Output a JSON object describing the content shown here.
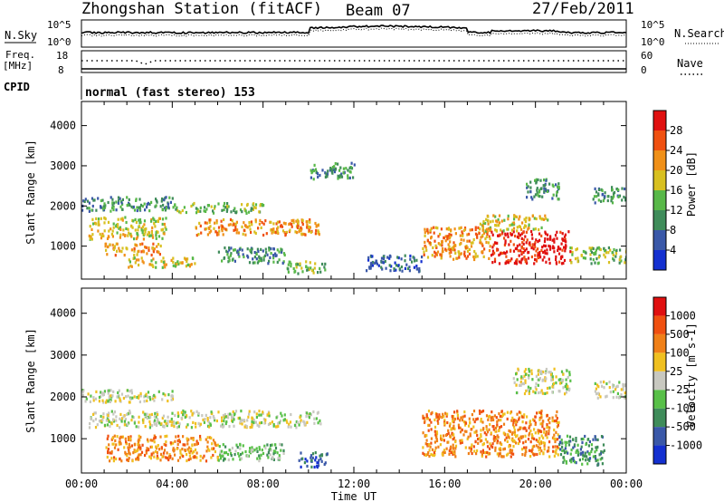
{
  "header": {
    "station": "Zhongshan Station (fitACF)",
    "beam": "Beam 07",
    "date": "27/Feb/2011"
  },
  "top_panels": {
    "nsky_label": "N.Sky",
    "nsearch_label": "N.Search",
    "freq_label": "Freq.",
    "freq_unit": "[MHz]",
    "nave_label": "Nave",
    "cpid_label": "CPID",
    "cpid_text": "normal (fast stereo) 153",
    "noise_ticks": [
      "10^5",
      "10^0"
    ],
    "freq_ticks": [
      "18",
      "8"
    ],
    "nave_ticks": [
      "60",
      "0"
    ]
  },
  "chart_data": [
    {
      "type": "heatmap",
      "title": "Power",
      "ylabel": "Slant Range [km]",
      "xlabel": "",
      "x_range": [
        "00:00",
        "24:00"
      ],
      "ylim": [
        180,
        4600
      ],
      "y_ticks": [
        "1000",
        "2000",
        "3000",
        "4000"
      ],
      "colorbar": {
        "label": "Power [dB]",
        "ticks": [
          "4",
          "8",
          "12",
          "16",
          "20",
          "24",
          "28"
        ],
        "colors": [
          "#1430d0",
          "#3a58a8",
          "#3f8c5a",
          "#58b848",
          "#d8c020",
          "#f09018",
          "#f05010",
          "#e01010"
        ]
      },
      "patches": [
        {
          "t0": 0.0,
          "t1": 4.0,
          "r0": 1900,
          "r1": 2250,
          "level": 2
        },
        {
          "t0": 0.3,
          "t1": 3.7,
          "r0": 1200,
          "r1": 1750,
          "level": 4
        },
        {
          "t0": 1.0,
          "t1": 3.5,
          "r0": 800,
          "r1": 1100,
          "level": 5
        },
        {
          "t0": 2.0,
          "t1": 5.0,
          "r0": 500,
          "r1": 750,
          "level": 4
        },
        {
          "t0": 4.0,
          "t1": 8.0,
          "r0": 1850,
          "r1": 2100,
          "level": 3
        },
        {
          "t0": 5.0,
          "t1": 10.5,
          "r0": 1300,
          "r1": 1700,
          "level": 5
        },
        {
          "t0": 6.0,
          "t1": 9.0,
          "r0": 600,
          "r1": 1000,
          "level": 2
        },
        {
          "t0": 9.0,
          "t1": 10.7,
          "r0": 350,
          "r1": 650,
          "level": 3
        },
        {
          "t0": 10.0,
          "t1": 12.0,
          "r0": 2700,
          "r1": 3100,
          "level": 2
        },
        {
          "t0": 12.5,
          "t1": 15.0,
          "r0": 400,
          "r1": 800,
          "level": 1
        },
        {
          "t0": 15.0,
          "t1": 18.0,
          "r0": 700,
          "r1": 1500,
          "level": 5
        },
        {
          "t0": 18.0,
          "t1": 21.5,
          "r0": 600,
          "r1": 1400,
          "level": 7
        },
        {
          "t0": 17.5,
          "t1": 20.5,
          "r0": 1400,
          "r1": 1800,
          "level": 4
        },
        {
          "t0": 19.5,
          "t1": 21.0,
          "r0": 2200,
          "r1": 2700,
          "level": 2
        },
        {
          "t0": 21.5,
          "t1": 24.0,
          "r0": 600,
          "r1": 1000,
          "level": 3
        },
        {
          "t0": 22.5,
          "t1": 24.0,
          "r0": 2100,
          "r1": 2500,
          "level": 2
        }
      ]
    },
    {
      "type": "heatmap",
      "title": "Velocity",
      "ylabel": "Slant Range [km]",
      "xlabel": "Time UT",
      "x_range": [
        "00:00",
        "24:00"
      ],
      "x_ticks": [
        "00:00",
        "04:00",
        "08:00",
        "12:00",
        "16:00",
        "20:00",
        "00:00"
      ],
      "ylim": [
        180,
        4600
      ],
      "y_ticks": [
        "1000",
        "2000",
        "3000",
        "4000"
      ],
      "colorbar": {
        "label": "Velocity [m s-1]",
        "ticks": [
          "1000",
          "500",
          "100",
          "25",
          "-25",
          "-100",
          "-500",
          "-1000"
        ],
        "colors": [
          "#1430d0",
          "#3a58a8",
          "#3f8c5a",
          "#58c048",
          "#c8c8c0",
          "#f0c020",
          "#f08018",
          "#f05010",
          "#e01010"
        ]
      },
      "patches": [
        {
          "t0": 0.0,
          "t1": 4.0,
          "r0": 1900,
          "r1": 2200,
          "level": 4
        },
        {
          "t0": 0.3,
          "t1": 10.5,
          "r0": 1300,
          "r1": 1700,
          "level": 4
        },
        {
          "t0": 1.0,
          "t1": 6.0,
          "r0": 500,
          "r1": 1100,
          "level": 6
        },
        {
          "t0": 6.0,
          "t1": 9.0,
          "r0": 500,
          "r1": 900,
          "level": 3
        },
        {
          "t0": 9.5,
          "t1": 10.8,
          "r0": 350,
          "r1": 700,
          "level": 1
        },
        {
          "t0": 15.0,
          "t1": 21.0,
          "r0": 600,
          "r1": 1700,
          "level": 6
        },
        {
          "t0": 19.0,
          "t1": 21.5,
          "r0": 2100,
          "r1": 2700,
          "level": 4
        },
        {
          "t0": 21.0,
          "t1": 23.0,
          "r0": 400,
          "r1": 1100,
          "level": 2
        },
        {
          "t0": 22.5,
          "t1": 24.0,
          "r0": 2000,
          "r1": 2400,
          "level": 4
        }
      ]
    }
  ]
}
